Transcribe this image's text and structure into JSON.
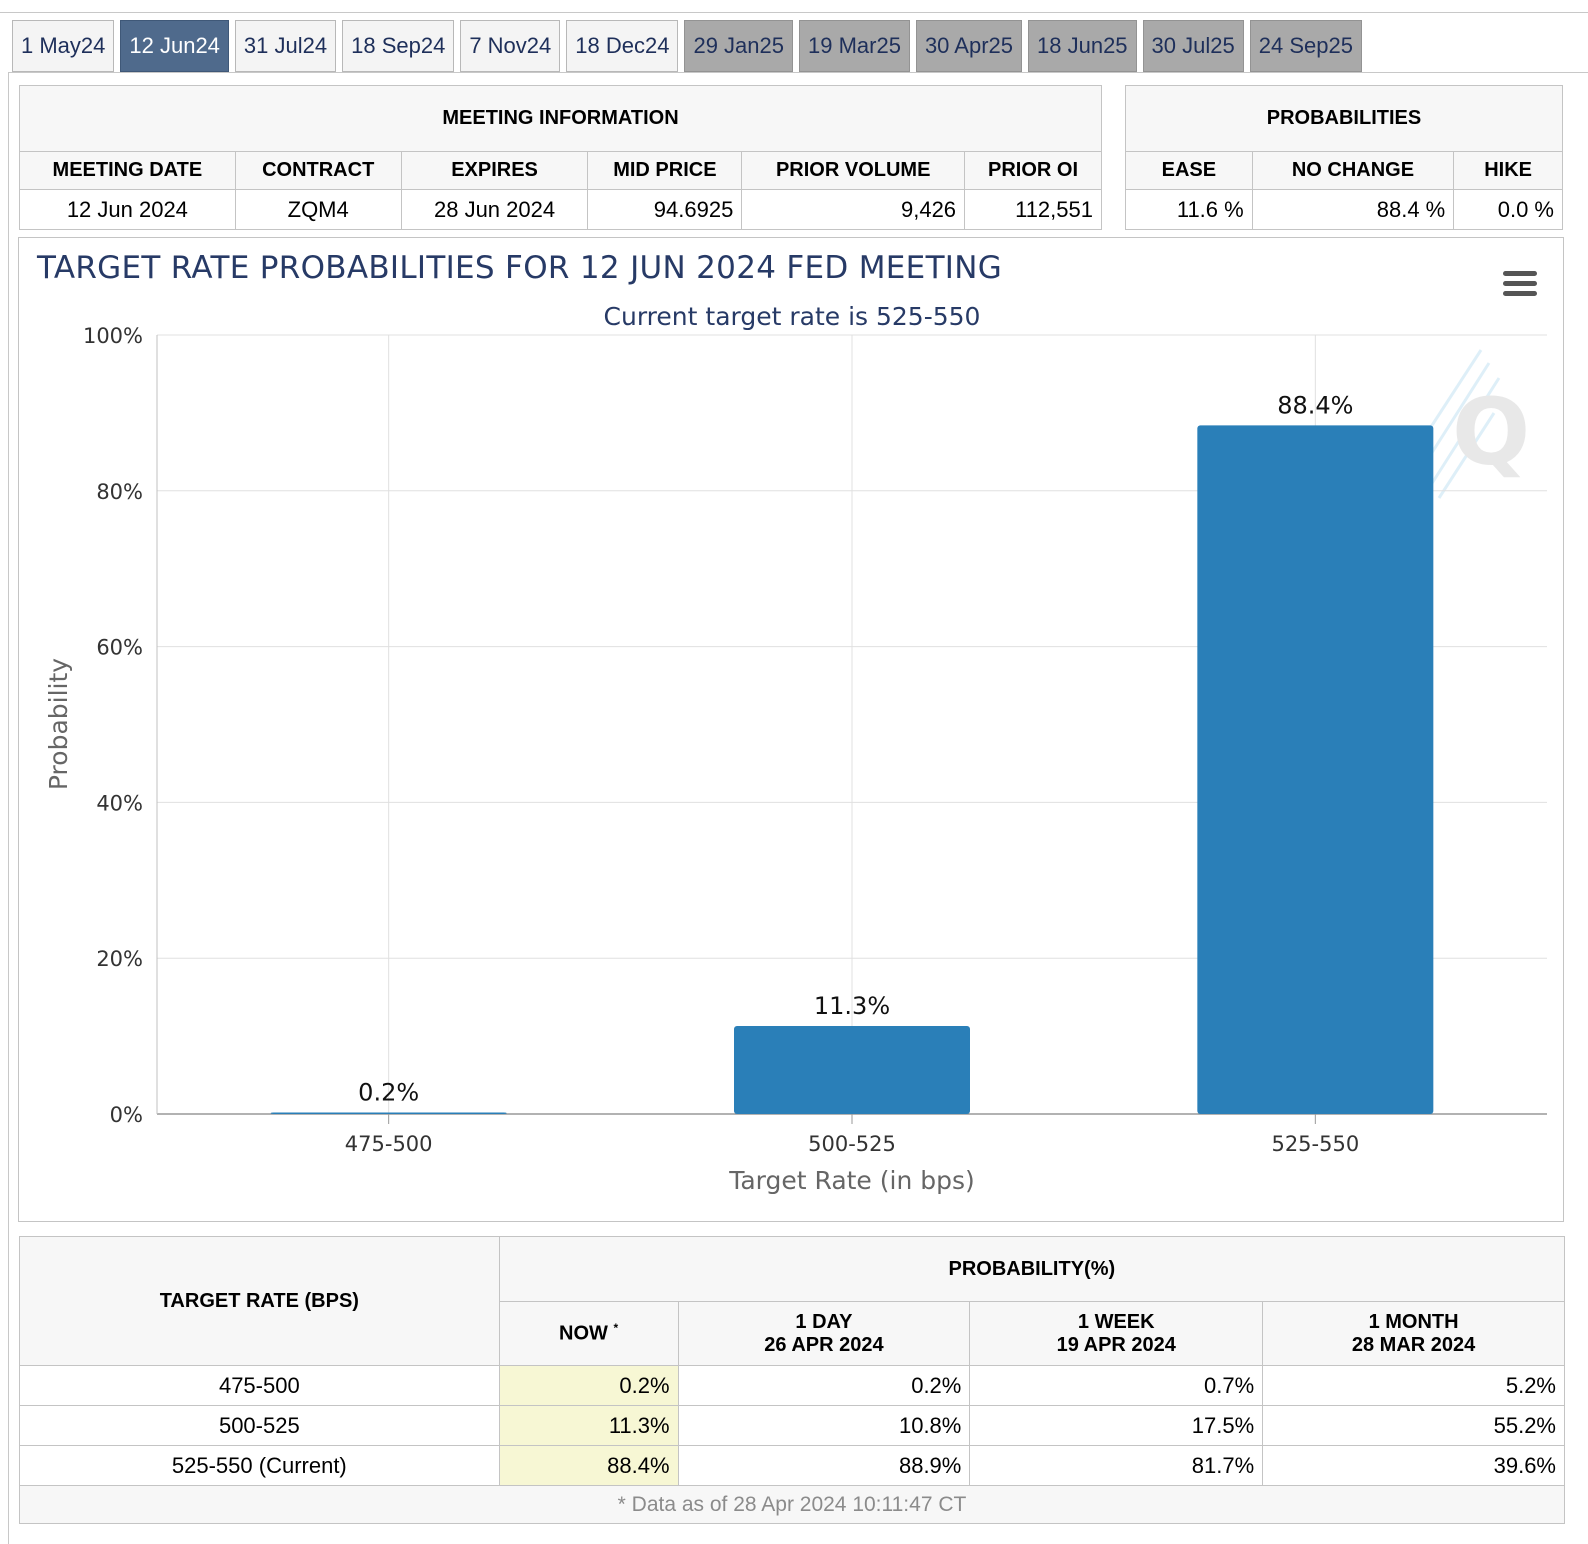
{
  "tabs": [
    {
      "label": "1 May24",
      "state": "normal"
    },
    {
      "label": "12 Jun24",
      "state": "active"
    },
    {
      "label": "31 Jul24",
      "state": "normal"
    },
    {
      "label": "18 Sep24",
      "state": "normal"
    },
    {
      "label": "7 Nov24",
      "state": "normal"
    },
    {
      "label": "18 Dec24",
      "state": "normal"
    },
    {
      "label": "29 Jan25",
      "state": "grey"
    },
    {
      "label": "19 Mar25",
      "state": "grey"
    },
    {
      "label": "30 Apr25",
      "state": "grey"
    },
    {
      "label": "18 Jun25",
      "state": "grey"
    },
    {
      "label": "30 Jul25",
      "state": "grey"
    },
    {
      "label": "24 Sep25",
      "state": "grey"
    }
  ],
  "meeting_info": {
    "title": "MEETING INFORMATION",
    "headers": [
      "MEETING DATE",
      "CONTRACT",
      "EXPIRES",
      "MID PRICE",
      "PRIOR VOLUME",
      "PRIOR OI"
    ],
    "values": [
      "12 Jun 2024",
      "ZQM4",
      "28 Jun 2024",
      "94.6925",
      "9,426",
      "112,551"
    ]
  },
  "probabilities": {
    "title": "PROBABILITIES",
    "headers": [
      "EASE",
      "NO CHANGE",
      "HIKE"
    ],
    "values": [
      "11.6 %",
      "88.4 %",
      "0.0 %"
    ]
  },
  "chart": {
    "title": "TARGET RATE PROBABILITIES FOR 12 JUN 2024 FED MEETING",
    "subtitle": "Current target rate is 525-550",
    "menu_icon": "hamburger-menu-icon",
    "watermark_icon": "cme-q-logo",
    "bar_color": "#2a7fb8"
  },
  "chart_data": {
    "type": "bar",
    "title": "TARGET RATE PROBABILITIES FOR 12 JUN 2024 FED MEETING",
    "subtitle": "Current target rate is 525-550",
    "categories": [
      "475-500",
      "500-525",
      "525-550"
    ],
    "values": [
      0.2,
      11.3,
      88.4
    ],
    "data_labels": [
      "0.2%",
      "11.3%",
      "88.4%"
    ],
    "xlabel": "Target Rate (in bps)",
    "ylabel": "Probability",
    "ylim": [
      0,
      100
    ],
    "yticks": [
      "0%",
      "20%",
      "40%",
      "60%",
      "80%",
      "100%"
    ],
    "grid": true
  },
  "history": {
    "rate_header": "TARGET RATE (BPS)",
    "prob_header": "PROBABILITY(%)",
    "columns": [
      {
        "line1": "NOW",
        "line2": ""
      },
      {
        "line1": "1 DAY",
        "line2": "26 APR 2024"
      },
      {
        "line1": "1 WEEK",
        "line2": "19 APR 2024"
      },
      {
        "line1": "1 MONTH",
        "line2": "28 MAR 2024"
      }
    ],
    "now_marker": "*",
    "rows": [
      {
        "rate": "475-500",
        "values": [
          "0.2%",
          "0.2%",
          "0.7%",
          "5.2%"
        ]
      },
      {
        "rate": "500-525",
        "values": [
          "11.3%",
          "10.8%",
          "17.5%",
          "55.2%"
        ]
      },
      {
        "rate": "525-550 (Current)",
        "values": [
          "88.4%",
          "88.9%",
          "81.7%",
          "39.6%"
        ]
      }
    ],
    "footnote": "* Data as of 28 Apr 2024 10:11:47 CT"
  }
}
